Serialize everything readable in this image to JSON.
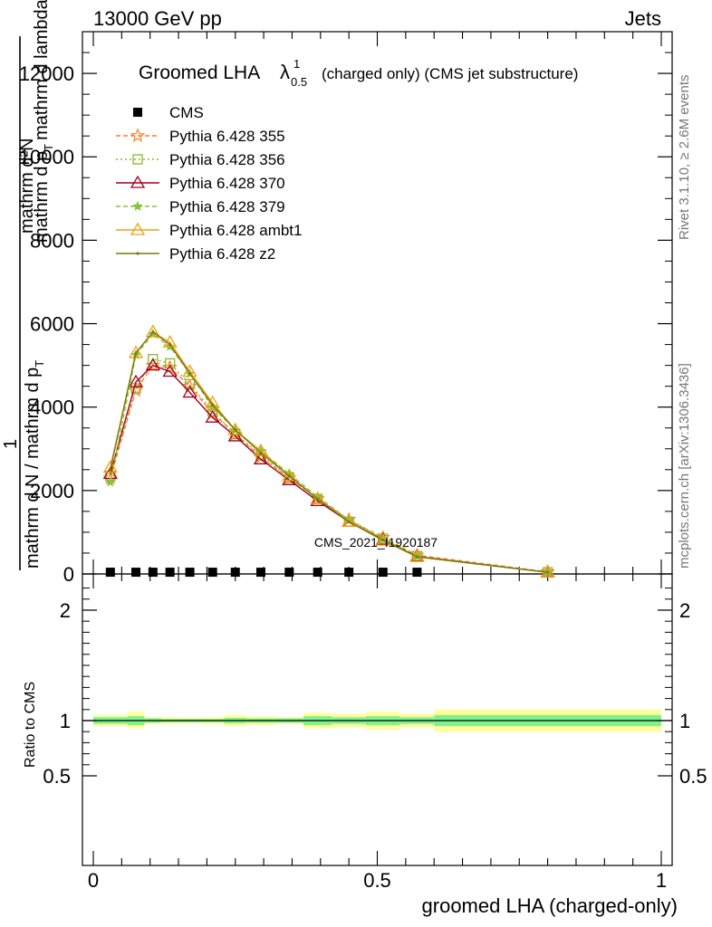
{
  "header": {
    "left": "13000 GeV pp",
    "right": "Jets"
  },
  "title": {
    "main": "Groomed LHA",
    "lambda": "λ",
    "sup": "1",
    "sub": "0.5",
    "rest": "(charged only) (CMS jet substructure)"
  },
  "side_text": {
    "top": "Rivet 3.1.10, ≥ 2.6M events",
    "bottom": "mcplots.cern.ch [arXiv:1306.3436]"
  },
  "watermark": "CMS_2021_I1920187",
  "ylabel_main": {
    "top": "mathrm d²N",
    "middle": "mathrm d p_T mathrm d lambda",
    "one": "1",
    "bottom": "mathrm d N / mathrm d p_T"
  },
  "ylabel_main_lines": [
    "mathrm d²N",
    "mathrm d p",
    "T",
    "mathrm d lambda",
    "1",
    "mathrm d N / mathrm d p",
    "mathrm d p",
    "T"
  ],
  "ylabel_ratio": "Ratio to CMS",
  "xlabel": "groomed LHA (charged-only)",
  "colors": {
    "p355": "#ff7f27",
    "p356": "#8db62c",
    "p370": "#a5001e",
    "p379": "#87c33d",
    "ambt1": "#f0a010",
    "z2": "#7a7a10",
    "band_inner": "#7ff28f",
    "band_outer": "#ffff99"
  },
  "chart_data": [
    {
      "type": "line",
      "title": "Groomed LHA λ¹₀.₅ (charged only) (CMS jet substructure)",
      "xlabel": "groomed LHA (charged-only)",
      "xlim": [
        0,
        1
      ],
      "ylim": [
        0,
        13000
      ],
      "y_ticks": [
        "0",
        "2000",
        "4000",
        "6000",
        "8000",
        "10000",
        "12000"
      ],
      "x_ticks": [
        "0",
        "0.5",
        "1"
      ],
      "legend": [
        "CMS",
        "Pythia 6.428 355",
        "Pythia 6.428 356",
        "Pythia 6.428 370",
        "Pythia 6.428 379",
        "Pythia 6.428 ambt1",
        "Pythia 6.428 z2"
      ],
      "x": [
        0.03,
        0.075,
        0.105,
        0.135,
        0.17,
        0.21,
        0.25,
        0.295,
        0.345,
        0.395,
        0.45,
        0.51,
        0.57,
        0.8
      ],
      "series": [
        {
          "name": "CMS",
          "values": [
            20,
            20,
            20,
            20,
            20,
            20,
            20,
            20,
            20,
            20,
            20,
            20,
            20,
            null
          ]
        },
        {
          "name": "Pythia 6.428 355",
          "values": [
            2300,
            4400,
            5000,
            4950,
            4500,
            3850,
            3350,
            2800,
            2300,
            1800,
            1300,
            870,
            450,
            50
          ]
        },
        {
          "name": "Pythia 6.428 356",
          "values": [
            2350,
            4450,
            5150,
            5050,
            4550,
            3900,
            3350,
            2850,
            2300,
            1800,
            1250,
            850,
            430,
            40
          ]
        },
        {
          "name": "Pythia 6.428 370",
          "values": [
            2400,
            4600,
            5000,
            4850,
            4350,
            3750,
            3300,
            2750,
            2250,
            1750,
            1250,
            820,
            420,
            40
          ]
        },
        {
          "name": "Pythia 6.428 379",
          "values": [
            2200,
            5250,
            5750,
            5450,
            4800,
            4000,
            3450,
            2950,
            2400,
            1850,
            1300,
            840,
            420,
            40
          ]
        },
        {
          "name": "Pythia 6.428 ambt1",
          "values": [
            2550,
            5300,
            5800,
            5550,
            4850,
            4100,
            3450,
            2950,
            2350,
            1800,
            1250,
            800,
            410,
            40
          ]
        },
        {
          "name": "Pythia 6.428 z2",
          "values": [
            2500,
            5300,
            5800,
            5500,
            4800,
            4050,
            3450,
            2900,
            2350,
            1800,
            1250,
            810,
            410,
            40
          ]
        }
      ]
    },
    {
      "type": "area",
      "ylabel": "Ratio to CMS",
      "xlabel": "groomed LHA (charged-only)",
      "xlim": [
        0,
        1
      ],
      "ylim": [
        0.4,
        2.3
      ],
      "y_ticks": [
        "0.5",
        "1",
        "2"
      ],
      "x_ticks": [
        "0",
        "0.5",
        "1"
      ],
      "bins": [
        {
          "x": [
            0.0,
            0.06
          ],
          "inner": [
            0.97,
            1.03
          ],
          "outer": [
            0.95,
            1.05
          ]
        },
        {
          "x": [
            0.06,
            0.09
          ],
          "inner": [
            0.96,
            1.04
          ],
          "outer": [
            0.93,
            1.08
          ]
        },
        {
          "x": [
            0.09,
            0.12
          ],
          "inner": [
            0.98,
            1.02
          ],
          "outer": [
            0.97,
            1.03
          ]
        },
        {
          "x": [
            0.12,
            0.15
          ],
          "inner": [
            0.985,
            1.015
          ],
          "outer": [
            0.97,
            1.03
          ]
        },
        {
          "x": [
            0.15,
            0.19
          ],
          "inner": [
            0.985,
            1.015
          ],
          "outer": [
            0.975,
            1.025
          ]
        },
        {
          "x": [
            0.19,
            0.23
          ],
          "inner": [
            0.985,
            1.015
          ],
          "outer": [
            0.97,
            1.03
          ]
        },
        {
          "x": [
            0.23,
            0.27
          ],
          "inner": [
            0.975,
            1.025
          ],
          "outer": [
            0.95,
            1.05
          ]
        },
        {
          "x": [
            0.27,
            0.32
          ],
          "inner": [
            0.98,
            1.02
          ],
          "outer": [
            0.96,
            1.04
          ]
        },
        {
          "x": [
            0.32,
            0.37
          ],
          "inner": [
            0.98,
            1.02
          ],
          "outer": [
            0.97,
            1.03
          ]
        },
        {
          "x": [
            0.37,
            0.42
          ],
          "inner": [
            0.96,
            1.04
          ],
          "outer": [
            0.93,
            1.07
          ]
        },
        {
          "x": [
            0.42,
            0.48
          ],
          "inner": [
            0.97,
            1.03
          ],
          "outer": [
            0.94,
            1.06
          ]
        },
        {
          "x": [
            0.48,
            0.54
          ],
          "inner": [
            0.96,
            1.04
          ],
          "outer": [
            0.92,
            1.08
          ]
        },
        {
          "x": [
            0.54,
            0.6
          ],
          "inner": [
            0.97,
            1.03
          ],
          "outer": [
            0.94,
            1.06
          ]
        },
        {
          "x": [
            0.6,
            1.0
          ],
          "inner": [
            0.95,
            1.05
          ],
          "outer": [
            0.9,
            1.1
          ]
        }
      ]
    }
  ]
}
